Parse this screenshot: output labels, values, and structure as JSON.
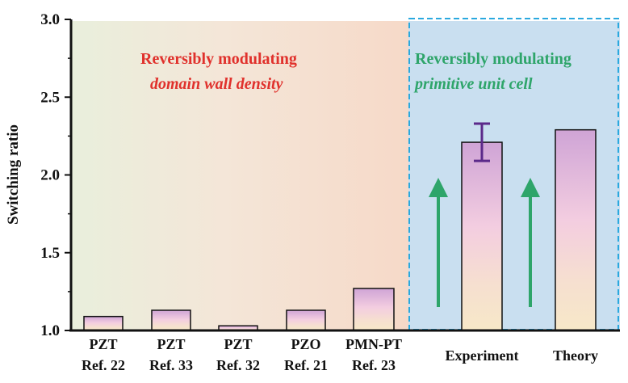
{
  "chart_data": {
    "type": "bar",
    "title": "",
    "xlabel": "",
    "ylabel": "Switching ratio",
    "ylim": [
      1.0,
      3.0
    ],
    "yticks": [
      "1.0",
      "1.5",
      "2.0",
      "2.5",
      "3.0"
    ],
    "categories": [
      {
        "line1": "PZT",
        "line2": "Ref. 22"
      },
      {
        "line1": "PZT",
        "line2": "Ref. 33"
      },
      {
        "line1": "PZT",
        "line2": "Ref. 32"
      },
      {
        "line1": "PZO",
        "line2": "Ref. 21"
      },
      {
        "line1": "PMN-PT",
        "line2": "Ref. 23"
      },
      {
        "line1": "Experiment",
        "line2": ""
      },
      {
        "line1": "Theory",
        "line2": ""
      }
    ],
    "values": [
      1.09,
      1.13,
      1.03,
      1.13,
      1.27,
      2.21,
      2.29
    ],
    "error_bars": [
      null,
      null,
      null,
      null,
      null,
      0.12,
      null
    ],
    "annotations": {
      "left_line1": "Reversibly modulating",
      "left_line2": "domain wall density",
      "right_line1": "Reversibly modulating",
      "right_line2": "primitive unit cell"
    },
    "colors": {
      "left_title": "#e0312c",
      "right_title": "#2ea56a",
      "arrow": "#2ea56a",
      "error_bar": "#5b2a8a",
      "dashed_box": "#2aa9df",
      "right_panel_bg": "#c9dff0"
    }
  }
}
